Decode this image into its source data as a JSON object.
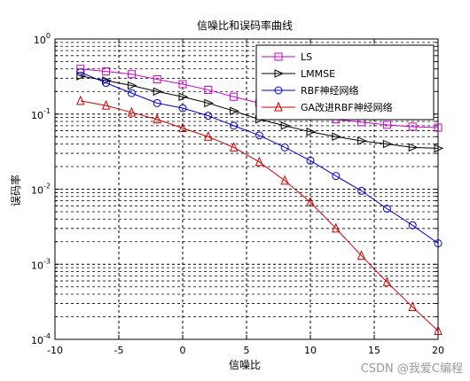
{
  "chart_data": {
    "type": "line",
    "title": "信噪比和误码率曲线",
    "xlabel": "信噪比",
    "ylabel": "误码率",
    "xlim": [
      -10,
      20
    ],
    "ylim": [
      0.0001,
      1
    ],
    "yscale": "log",
    "xticks": [
      -10,
      -5,
      0,
      5,
      10,
      15,
      20
    ],
    "xtick_labels": [
      "-10",
      "-5",
      "0",
      "5",
      "10",
      "15",
      "20"
    ],
    "grid": true,
    "legend_position": "top-right",
    "x": [
      -8,
      -6,
      -4,
      -2,
      0,
      2,
      4,
      6,
      8,
      10,
      12,
      14,
      16,
      18,
      20
    ],
    "series": [
      {
        "name": "LS",
        "color": "#cc00cc",
        "marker": "square",
        "values": [
          0.4,
          0.37,
          0.34,
          0.29,
          0.25,
          0.21,
          0.17,
          0.14,
          0.115,
          0.095,
          0.085,
          0.078,
          0.072,
          0.068,
          0.066
        ]
      },
      {
        "name": "LMMSE",
        "color": "#000000",
        "marker": "triangle-right",
        "values": [
          0.32,
          0.28,
          0.24,
          0.2,
          0.17,
          0.14,
          0.11,
          0.085,
          0.07,
          0.058,
          0.05,
          0.044,
          0.04,
          0.036,
          0.035
        ]
      },
      {
        "name": "RBF神经网络",
        "color": "#0000cc",
        "marker": "circle",
        "values": [
          0.36,
          0.26,
          0.19,
          0.14,
          0.12,
          0.095,
          0.07,
          0.052,
          0.036,
          0.024,
          0.015,
          0.0095,
          0.0055,
          0.0033,
          0.0019
        ]
      },
      {
        "name": "GA改进RBF神经网络",
        "color": "#cc0000",
        "marker": "triangle-up",
        "values": [
          0.15,
          0.13,
          0.105,
          0.085,
          0.065,
          0.05,
          0.036,
          0.023,
          0.013,
          0.0067,
          0.003,
          0.0013,
          0.00058,
          0.00027,
          0.00013
        ]
      }
    ]
  },
  "watermark": "CSDN @我爱C编程"
}
